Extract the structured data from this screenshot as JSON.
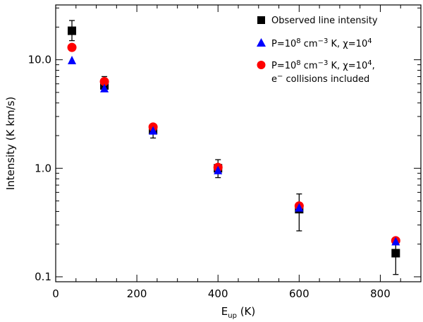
{
  "chart_data": {
    "type": "scatter",
    "xlabel": "E",
    "xlabel_sub": "up",
    "xlabel_unit": " (K)",
    "ylabel": "Intensity (K km/s)",
    "xlim": [
      0,
      900
    ],
    "ylim": [
      0.09,
      32
    ],
    "yscale": "log",
    "x_ticks": [
      0,
      200,
      400,
      600,
      800
    ],
    "x_tick_labels": [
      "0",
      "200",
      "400",
      "600",
      "800"
    ],
    "y_ticks": [
      0.1,
      1.0,
      10.0
    ],
    "y_tick_labels": [
      "0.1",
      "1.0",
      "10.0"
    ],
    "legend_position": "top-right",
    "series": [
      {
        "name": "Observed line intensity",
        "marker": "square",
        "color": "#000000",
        "x": [
          40,
          120,
          240,
          400,
          600,
          838
        ],
        "y": [
          18.5,
          5.8,
          2.25,
          1.0,
          0.42,
          0.165
        ],
        "err_low": [
          15.0,
          5.2,
          1.9,
          0.82,
          0.265,
          0.105
        ],
        "err_high": [
          23.0,
          7.0,
          2.45,
          1.2,
          0.58,
          0.225
        ]
      },
      {
        "name": "P=10^8 cm^-3 K, χ=10^4",
        "marker": "triangle",
        "color": "#0000ff",
        "x": [
          40,
          120,
          240,
          400,
          600,
          838
        ],
        "y": [
          9.8,
          5.4,
          2.2,
          0.95,
          0.43,
          0.21
        ]
      },
      {
        "name": "P=10^8 cm^-3 K, χ=10^4, e^- collisions included",
        "marker": "circle",
        "color": "#ff0000",
        "x": [
          40,
          120,
          240,
          400,
          600,
          838
        ],
        "y": [
          13.0,
          6.3,
          2.4,
          1.02,
          0.45,
          0.215
        ]
      }
    ],
    "legend": {
      "line1": "Observed line intensity",
      "line2_p": "P=10",
      "line2_exp1": "8",
      "line2_unit": " cm",
      "line2_exp2": "−3",
      "line2_mid": " K, χ=10",
      "line2_exp3": "4",
      "line3_p": "P=10",
      "line3_exp1": "8",
      "line3_unit": " cm",
      "line3_exp2": "−3",
      "line3_mid": " K, χ=10",
      "line3_exp3": "4",
      "line3_end": ",",
      "line4_e": "e",
      "line4_exp": "−",
      "line4_rest": " collisions included"
    }
  }
}
